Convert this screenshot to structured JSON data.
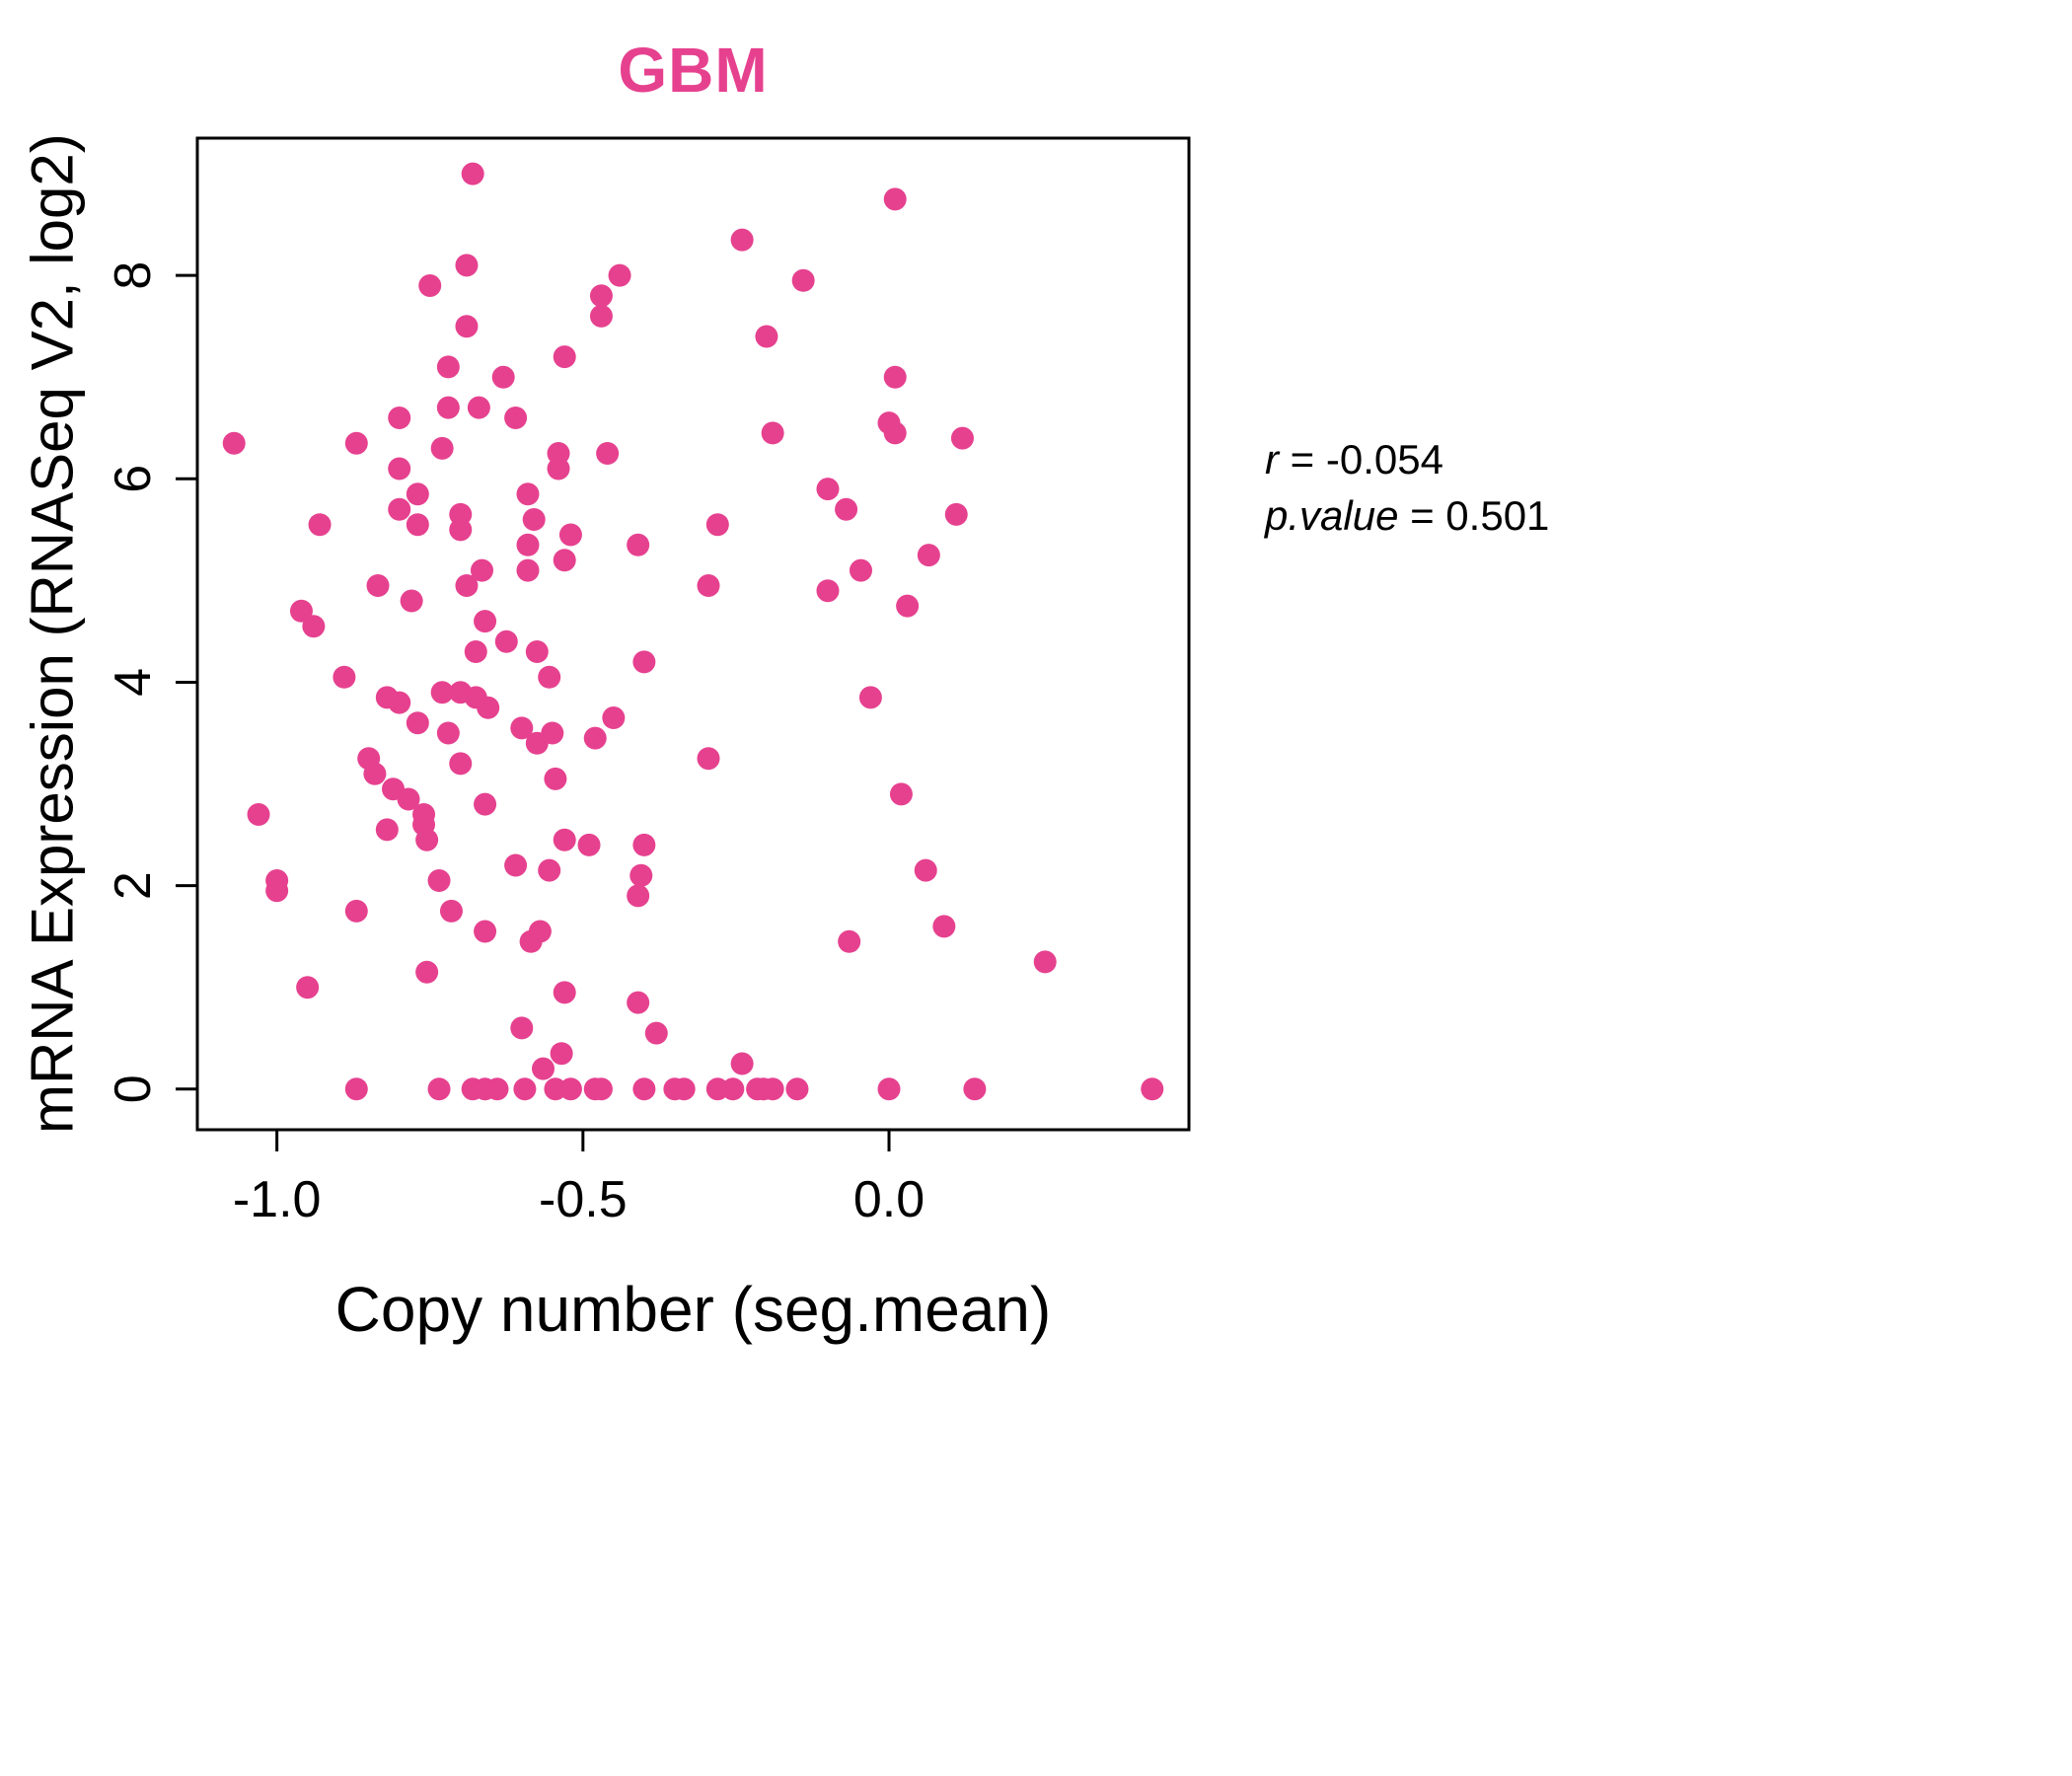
{
  "title": "GBM",
  "stats": {
    "line1_label": "r",
    "line1_rest": " = -0.054",
    "line2_label": "p.value",
    "line2_rest": " = 0.501"
  },
  "chart_data": {
    "type": "scatter",
    "title": "GBM",
    "xlabel": "Copy number (seg.mean)",
    "ylabel": "mRNA Expression (RNASeq V2, log2)",
    "xlim": [
      -1.13,
      0.49
    ],
    "ylim": [
      -0.4,
      9.35
    ],
    "xticks": [
      -1.0,
      -0.5,
      0.0
    ],
    "yticks": [
      0,
      2,
      4,
      6,
      8
    ],
    "grid": false,
    "point_color": "#E6418F",
    "title_color": "#E6418F",
    "annotation": {
      "r": -0.054,
      "p_value": 0.501,
      "legend_position": "right"
    },
    "points": [
      [
        -0.68,
        9.0
      ],
      [
        0.01,
        8.75
      ],
      [
        -0.24,
        8.35
      ],
      [
        -0.69,
        8.1
      ],
      [
        -0.44,
        8.0
      ],
      [
        -0.14,
        7.95
      ],
      [
        -0.75,
        7.9
      ],
      [
        -0.47,
        7.8
      ],
      [
        -0.47,
        7.6
      ],
      [
        -0.69,
        7.5
      ],
      [
        -0.2,
        7.4
      ],
      [
        -0.53,
        7.2
      ],
      [
        -0.72,
        7.1
      ],
      [
        -0.63,
        7.0
      ],
      [
        0.01,
        7.0
      ],
      [
        -0.72,
        6.7
      ],
      [
        -0.67,
        6.7
      ],
      [
        -0.8,
        6.6
      ],
      [
        -0.61,
        6.6
      ],
      [
        0.0,
        6.55
      ],
      [
        -0.19,
        6.45
      ],
      [
        0.01,
        6.45
      ],
      [
        0.12,
        6.4
      ],
      [
        -1.07,
        6.35
      ],
      [
        -0.87,
        6.35
      ],
      [
        -0.73,
        6.3
      ],
      [
        -0.54,
        6.25
      ],
      [
        -0.46,
        6.25
      ],
      [
        -0.54,
        6.1
      ],
      [
        -0.8,
        6.1
      ],
      [
        -0.1,
        5.9
      ],
      [
        -0.77,
        5.85
      ],
      [
        -0.59,
        5.85
      ],
      [
        -0.8,
        5.7
      ],
      [
        -0.07,
        5.7
      ],
      [
        0.11,
        5.65
      ],
      [
        -0.7,
        5.65
      ],
      [
        -0.58,
        5.6
      ],
      [
        -0.77,
        5.55
      ],
      [
        -0.93,
        5.55
      ],
      [
        -0.28,
        5.55
      ],
      [
        -0.7,
        5.5
      ],
      [
        -0.52,
        5.45
      ],
      [
        -0.59,
        5.35
      ],
      [
        -0.41,
        5.35
      ],
      [
        -0.53,
        5.2
      ],
      [
        0.065,
        5.25
      ],
      [
        -0.59,
        5.1
      ],
      [
        -0.046,
        5.1
      ],
      [
        -0.665,
        5.1
      ],
      [
        -0.69,
        4.95
      ],
      [
        -0.835,
        4.95
      ],
      [
        -0.295,
        4.95
      ],
      [
        -0.1,
        4.9
      ],
      [
        -0.78,
        4.8
      ],
      [
        0.03,
        4.75
      ],
      [
        -0.96,
        4.7
      ],
      [
        -0.66,
        4.6
      ],
      [
        -0.94,
        4.55
      ],
      [
        -0.625,
        4.4
      ],
      [
        -0.675,
        4.3
      ],
      [
        -0.575,
        4.3
      ],
      [
        -0.4,
        4.2
      ],
      [
        -0.89,
        4.05
      ],
      [
        -0.555,
        4.05
      ],
      [
        -0.82,
        3.85
      ],
      [
        -0.8,
        3.8
      ],
      [
        -0.73,
        3.9
      ],
      [
        -0.7,
        3.9
      ],
      [
        -0.675,
        3.85
      ],
      [
        -0.655,
        3.75
      ],
      [
        -0.45,
        3.65
      ],
      [
        -0.03,
        3.85
      ],
      [
        -0.77,
        3.6
      ],
      [
        -0.72,
        3.5
      ],
      [
        -0.6,
        3.55
      ],
      [
        -0.575,
        3.4
      ],
      [
        -0.55,
        3.5
      ],
      [
        -0.48,
        3.45
      ],
      [
        -0.85,
        3.25
      ],
      [
        -0.7,
        3.2
      ],
      [
        -0.84,
        3.1
      ],
      [
        -0.545,
        3.05
      ],
      [
        -0.295,
        3.25
      ],
      [
        -0.81,
        2.95
      ],
      [
        0.02,
        2.9
      ],
      [
        -0.785,
        2.85
      ],
      [
        -0.66,
        2.8
      ],
      [
        -0.76,
        2.7
      ],
      [
        -0.76,
        2.6
      ],
      [
        -1.03,
        2.7
      ],
      [
        -0.82,
        2.55
      ],
      [
        -0.755,
        2.45
      ],
      [
        -0.53,
        2.45
      ],
      [
        -0.49,
        2.4
      ],
      [
        -0.4,
        2.4
      ],
      [
        -0.61,
        2.2
      ],
      [
        -0.555,
        2.15
      ],
      [
        -0.405,
        2.1
      ],
      [
        0.06,
        2.15
      ],
      [
        -1.0,
        2.05
      ],
      [
        -0.735,
        2.05
      ],
      [
        -1.0,
        1.95
      ],
      [
        -0.41,
        1.9
      ],
      [
        -0.87,
        1.75
      ],
      [
        -0.715,
        1.75
      ],
      [
        0.09,
        1.6
      ],
      [
        -0.66,
        1.55
      ],
      [
        -0.57,
        1.55
      ],
      [
        -0.585,
        1.45
      ],
      [
        -0.065,
        1.45
      ],
      [
        0.255,
        1.25
      ],
      [
        -0.755,
        1.15
      ],
      [
        -0.95,
        1.0
      ],
      [
        -0.53,
        0.95
      ],
      [
        -0.41,
        0.85
      ],
      [
        -0.6,
        0.6
      ],
      [
        -0.38,
        0.55
      ],
      [
        -0.565,
        0.2
      ],
      [
        -0.535,
        0.35
      ],
      [
        -0.24,
        0.25
      ],
      [
        -0.87,
        0
      ],
      [
        -0.735,
        0
      ],
      [
        -0.68,
        0
      ],
      [
        -0.66,
        0
      ],
      [
        -0.64,
        0
      ],
      [
        -0.595,
        0
      ],
      [
        -0.545,
        0
      ],
      [
        -0.52,
        0
      ],
      [
        -0.48,
        0
      ],
      [
        -0.47,
        0
      ],
      [
        -0.4,
        0
      ],
      [
        -0.35,
        0
      ],
      [
        -0.335,
        0
      ],
      [
        -0.28,
        0
      ],
      [
        -0.255,
        0
      ],
      [
        -0.215,
        0
      ],
      [
        -0.205,
        0
      ],
      [
        -0.19,
        0
      ],
      [
        -0.15,
        0
      ],
      [
        0.0,
        0
      ],
      [
        0.14,
        0
      ],
      [
        0.43,
        0
      ]
    ]
  }
}
